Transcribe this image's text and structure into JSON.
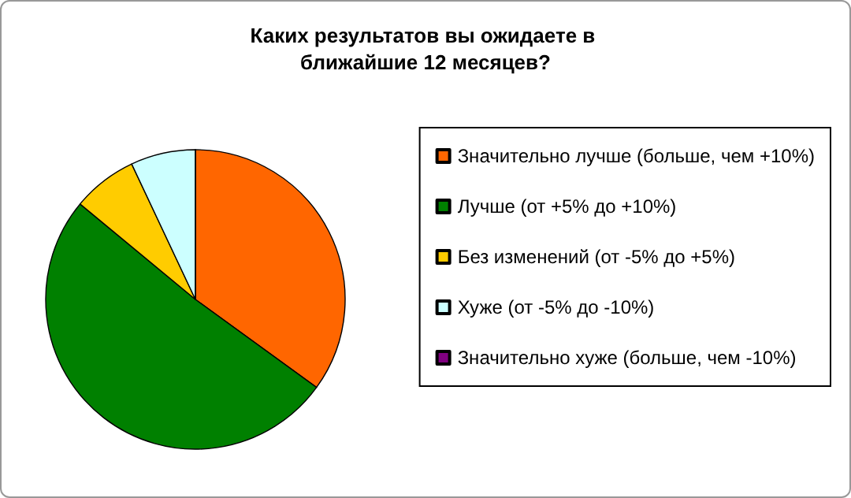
{
  "chart_data": {
    "type": "pie",
    "title": "Каких результатов вы ожидаете в ближайшие 12 месяцев?",
    "categories": [
      "Значительно лучше (больше, чем +10%)",
      "Лучше (от +5% до +10%)",
      "Без изменений (от -5% до +5%)",
      "Хуже (от -5% до -10%)",
      "Значительно хуже (больше, чем -10%)"
    ],
    "values": [
      35,
      51,
      7,
      7,
      0
    ],
    "colors": [
      "#ff6600",
      "#008000",
      "#ffcc00",
      "#ccffff",
      "#800080"
    ],
    "legend": "right"
  }
}
